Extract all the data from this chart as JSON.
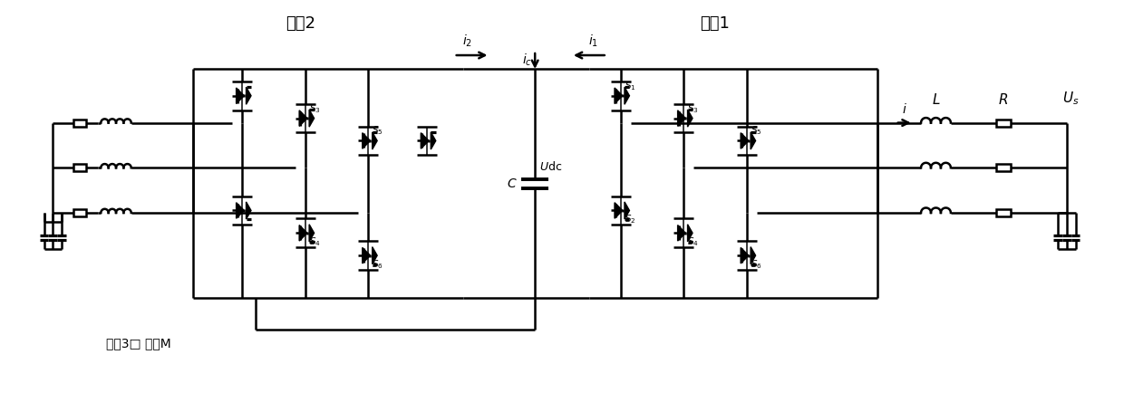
{
  "bg_color": "#ffffff",
  "line_color": "#000000",
  "lw": 1.8,
  "label_port2": "端口2",
  "label_port1": "端口1",
  "label_port3M": "端口3□ 端口M",
  "label_i2": "$i_2$",
  "label_i1": "$i_1$",
  "label_ic": "$i_c$",
  "label_C": "$C$",
  "label_Udc": "$U\\mathrm{dc}$",
  "label_L": "$L$",
  "label_R": "$R$",
  "label_Us": "$U_s$",
  "label_i": "$i$"
}
